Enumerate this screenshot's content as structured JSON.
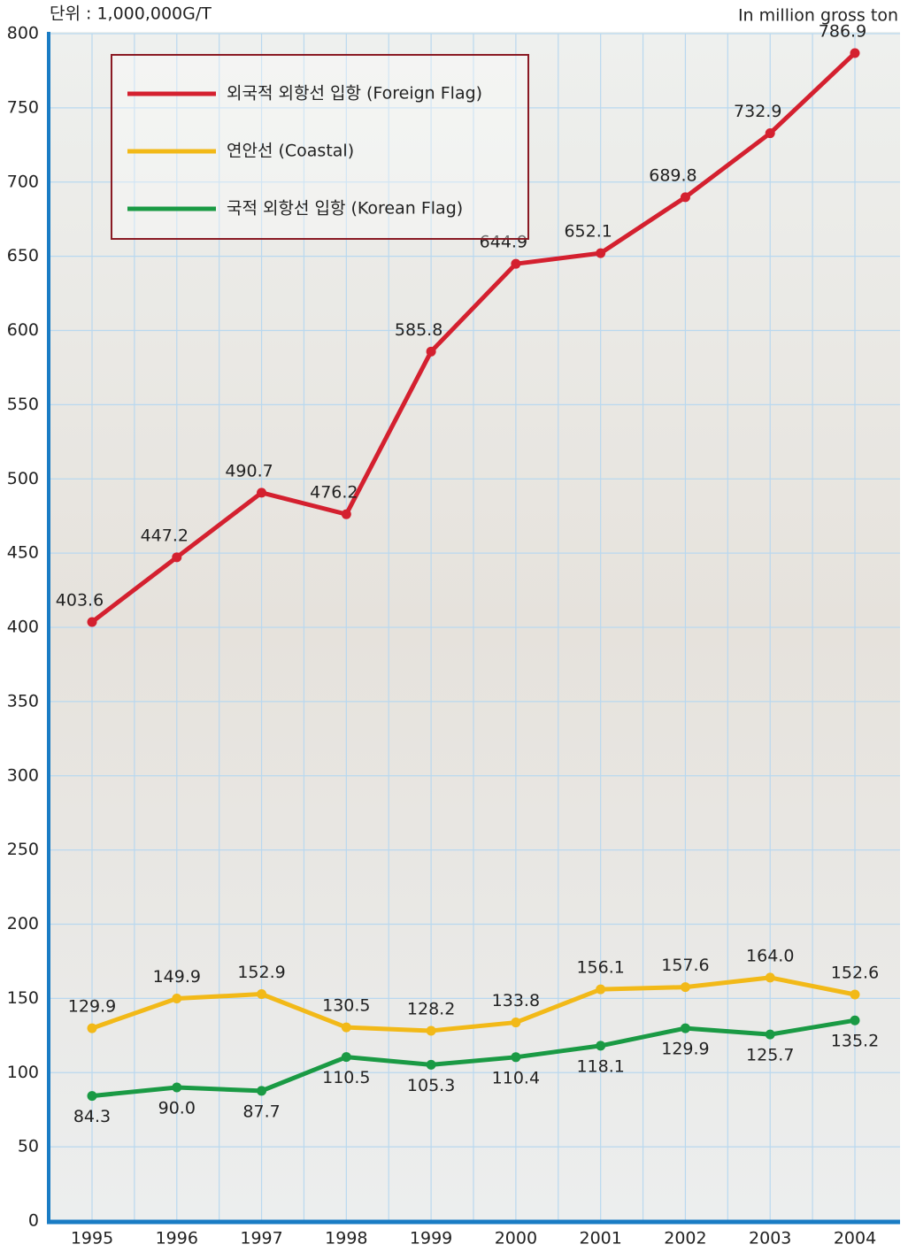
{
  "chart_data": {
    "type": "line",
    "unit_label": "단위 : 1,000,000G/T",
    "unit_label_en": "In million gross ton",
    "categories": [
      "1995",
      "1996",
      "1997",
      "1998",
      "1999",
      "2000",
      "2001",
      "2002",
      "2003",
      "2004"
    ],
    "series": [
      {
        "name": "외국적 외항선 입항 (Foreign Flag)",
        "color": "#d4202f",
        "values": [
          403.6,
          447.2,
          490.7,
          476.2,
          585.8,
          644.9,
          652.1,
          689.8,
          732.9,
          786.9
        ]
      },
      {
        "name": "연안선 (Coastal)",
        "color": "#f2b918",
        "values": [
          129.9,
          149.9,
          152.9,
          130.5,
          128.2,
          133.8,
          156.1,
          157.6,
          164.0,
          152.6
        ],
        "value_labels": [
          "129.9",
          "149.9",
          "152.9",
          "130.5",
          "128.2",
          "133.8",
          "156.1",
          "157.6",
          "164.0",
          "152.6"
        ]
      },
      {
        "name": "국적 외항선 입항 (Korean Flag)",
        "color": "#1a9a44",
        "values": [
          84.3,
          90.0,
          87.7,
          110.5,
          105.3,
          110.4,
          118.1,
          129.9,
          125.7,
          135.2
        ],
        "value_labels": [
          "84.3",
          "90.0",
          "87.7",
          "110.5",
          "105.3",
          "110.4",
          "118.1",
          "129.9",
          "125.7",
          "135.2"
        ]
      }
    ],
    "ylim": [
      0,
      800
    ],
    "yticks": [
      0,
      50,
      100,
      150,
      200,
      250,
      300,
      350,
      400,
      450,
      500,
      550,
      600,
      650,
      700,
      750,
      800
    ],
    "grid": true,
    "legend": "upper left"
  }
}
